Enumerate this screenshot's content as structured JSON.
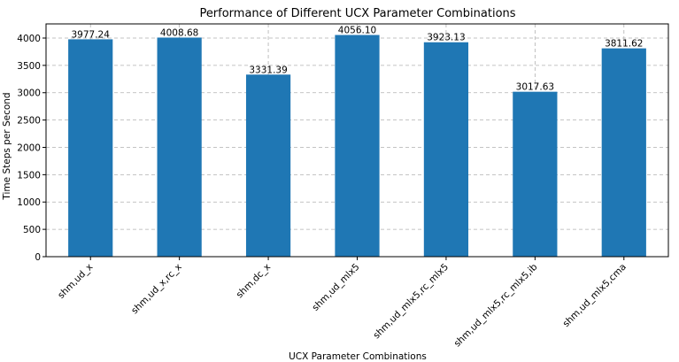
{
  "chart_data": {
    "type": "bar",
    "title": "Performance of Different UCX Parameter Combinations",
    "xlabel": "UCX Parameter Combinations",
    "ylabel": "Time Steps per Second",
    "categories": [
      "shm,ud_x",
      "shm,ud_x,rc_x",
      "shm,dc_x",
      "shm,ud_mlx5",
      "shm,ud_mlx5,rc_mlx5",
      "shm,ud_mlx5,rc_mlx5,ib",
      "shm,ud_mlx5,cma"
    ],
    "values": [
      3977.24,
      4008.68,
      3331.39,
      4056.1,
      3923.13,
      3017.63,
      3811.62
    ],
    "value_labels": [
      "3977.24",
      "4008.68",
      "3331.39",
      "4056.10",
      "3923.13",
      "3017.63",
      "3811.62"
    ],
    "ylim": [
      0,
      4259
    ],
    "yticks": [
      0,
      500,
      1000,
      1500,
      2000,
      2500,
      3000,
      3500,
      4000
    ],
    "grid": true,
    "bar_color": "#1f77b4"
  }
}
